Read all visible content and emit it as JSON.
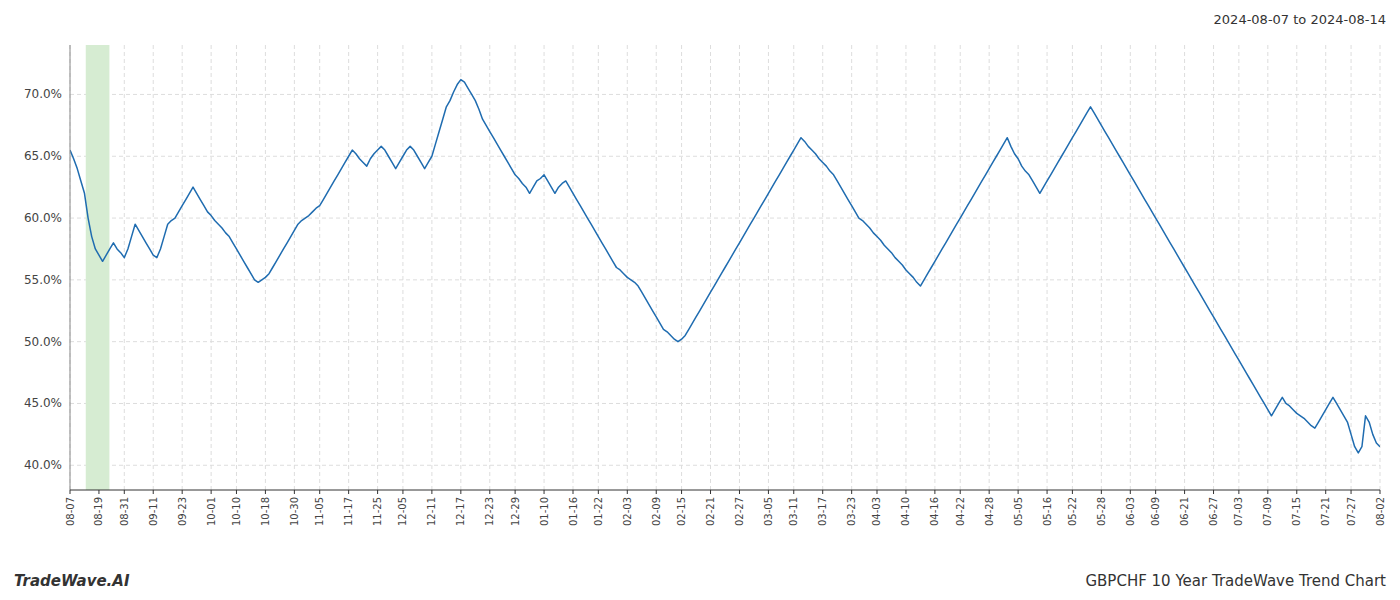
{
  "chart_data": {
    "type": "line",
    "title": "2024-08-07 to 2024-08-14",
    "annotations": [
      "TradeWave.AI",
      "GBPCHF 10 Year TradeWave Trend Chart"
    ],
    "color": "#1f6cb0",
    "grid": true,
    "ylim": [
      38.0,
      74.0
    ],
    "yticks": [
      {
        "value": 40.0,
        "label": "40.0%"
      },
      {
        "value": 45.0,
        "label": "45.0%"
      },
      {
        "value": 50.0,
        "label": "50.0%"
      },
      {
        "value": 55.0,
        "label": "55.0%"
      },
      {
        "value": 60.0,
        "label": "60.0%"
      },
      {
        "value": 65.0,
        "label": "65.0%"
      },
      {
        "value": 70.0,
        "label": "70.0%"
      }
    ],
    "shade": {
      "start": 4.356,
      "end": 10.89,
      "color": "#d6ecd2"
    },
    "categories": [
      "08-07",
      null,
      null,
      null,
      null,
      null,
      null,
      null,
      "08-19",
      null,
      null,
      null,
      null,
      null,
      null,
      "08-31",
      null,
      null,
      null,
      null,
      null,
      null,
      null,
      "09-11",
      null,
      null,
      null,
      null,
      null,
      null,
      null,
      "09-23",
      null,
      null,
      null,
      null,
      null,
      null,
      null,
      "10-01",
      null,
      null,
      null,
      null,
      null,
      null,
      "10-10",
      null,
      null,
      null,
      null,
      null,
      null,
      null,
      "10-18",
      null,
      null,
      null,
      null,
      null,
      null,
      null,
      "10-30",
      null,
      null,
      null,
      null,
      null,
      null,
      "11-05",
      null,
      null,
      null,
      null,
      null,
      null,
      null,
      "11-17",
      null,
      null,
      null,
      null,
      null,
      null,
      null,
      "11-25",
      null,
      null,
      null,
      null,
      null,
      null,
      "12-05",
      null,
      null,
      null,
      null,
      null,
      null,
      null,
      "12-11",
      null,
      null,
      null,
      null,
      null,
      null,
      null,
      "12-17",
      null,
      null,
      null,
      null,
      null,
      null,
      null,
      "12-23",
      null,
      null,
      null,
      null,
      null,
      null,
      "12-29",
      null,
      null,
      null,
      null,
      null,
      null,
      null,
      "01-10",
      null,
      null,
      null,
      null,
      null,
      null,
      null,
      "01-16",
      null,
      null,
      null,
      null,
      null,
      null,
      "01-22",
      null,
      null,
      null,
      null,
      null,
      null,
      null,
      "02-03",
      null,
      null,
      null,
      null,
      null,
      null,
      null,
      "02-09",
      null,
      null,
      null,
      null,
      null,
      null,
      "02-15",
      null,
      null,
      null,
      null,
      null,
      null,
      null,
      "02-21",
      null,
      null,
      null,
      null,
      null,
      null,
      null,
      "02-27",
      null,
      null,
      null,
      null,
      null,
      null,
      null,
      "03-05",
      null,
      null,
      null,
      null,
      null,
      null,
      "03-11",
      null,
      null,
      null,
      null,
      null,
      null,
      null,
      "03-17",
      null,
      null,
      null,
      null,
      null,
      null,
      null,
      "03-23",
      null,
      null,
      null,
      null,
      null,
      null,
      "04-03",
      null,
      null,
      null,
      null,
      null,
      null,
      null,
      "04-10",
      null,
      null,
      null,
      null,
      null,
      null,
      null,
      "04-16",
      null,
      null,
      null,
      null,
      null,
      null,
      "04-22",
      null,
      null,
      null,
      null,
      null,
      null,
      null,
      "04-28",
      null,
      null,
      null,
      null,
      null,
      null,
      null,
      "05-05",
      null,
      null,
      null,
      null,
      null,
      null,
      null,
      "05-16",
      null,
      null,
      null,
      null,
      null,
      null,
      "05-22",
      null,
      null,
      null,
      null,
      null,
      null,
      null,
      "05-28",
      null,
      null,
      null,
      null,
      null,
      null,
      null,
      "06-03",
      null,
      null,
      null,
      null,
      null,
      null,
      "06-09",
      null,
      null,
      null,
      null,
      null,
      null,
      null,
      "06-21",
      null,
      null,
      null,
      null,
      null,
      null,
      null,
      "06-27",
      null,
      null,
      null,
      null,
      null,
      null,
      "07-03",
      null,
      null,
      null,
      null,
      null,
      null,
      null,
      "07-09",
      null,
      null,
      null,
      null,
      null,
      null,
      null,
      "07-15",
      null,
      null,
      null,
      null,
      null,
      null,
      null,
      "07-21",
      null,
      null,
      null,
      null,
      null,
      null,
      "07-27",
      null,
      null,
      null,
      null,
      null,
      null,
      null,
      "08-02"
    ],
    "values": [
      65.5,
      64.8,
      64.0,
      63.0,
      62.0,
      60.0,
      58.5,
      57.5,
      57.0,
      56.5,
      57.0,
      57.5,
      58.0,
      57.5,
      57.2,
      56.8,
      57.5,
      58.5,
      59.5,
      59.0,
      58.5,
      58.0,
      57.5,
      57.0,
      56.8,
      57.5,
      58.5,
      59.5,
      59.8,
      60.0,
      60.5,
      61.0,
      61.5,
      62.0,
      62.5,
      62.0,
      61.5,
      61.0,
      60.5,
      60.2,
      59.8,
      59.5,
      59.2,
      58.8,
      58.5,
      58.0,
      57.5,
      57.0,
      56.5,
      56.0,
      55.5,
      55.0,
      54.8,
      55.0,
      55.2,
      55.5,
      56.0,
      56.5,
      57.0,
      57.5,
      58.0,
      58.5,
      59.0,
      59.5,
      59.8,
      60.0,
      60.2,
      60.5,
      60.8,
      61.0,
      61.5,
      62.0,
      62.5,
      63.0,
      63.5,
      64.0,
      64.5,
      65.0,
      65.5,
      65.2,
      64.8,
      64.5,
      64.2,
      64.8,
      65.2,
      65.5,
      65.8,
      65.5,
      65.0,
      64.5,
      64.0,
      64.5,
      65.0,
      65.5,
      65.8,
      65.5,
      65.0,
      64.5,
      64.0,
      64.5,
      65.0,
      66.0,
      67.0,
      68.0,
      69.0,
      69.5,
      70.2,
      70.8,
      71.2,
      71.0,
      70.5,
      70.0,
      69.5,
      68.8,
      68.0,
      67.5,
      67.0,
      66.5,
      66.0,
      65.5,
      65.0,
      64.5,
      64.0,
      63.5,
      63.2,
      62.8,
      62.5,
      62.0,
      62.5,
      63.0,
      63.2,
      63.5,
      63.0,
      62.5,
      62.0,
      62.5,
      62.8,
      63.0,
      62.5,
      62.0,
      61.5,
      61.0,
      60.5,
      60.0,
      59.5,
      59.0,
      58.5,
      58.0,
      57.5,
      57.0,
      56.5,
      56.0,
      55.8,
      55.5,
      55.2,
      55.0,
      54.8,
      54.5,
      54.0,
      53.5,
      53.0,
      52.5,
      52.0,
      51.5,
      51.0,
      50.8,
      50.5,
      50.2,
      50.0,
      50.2,
      50.5,
      51.0,
      51.5,
      52.0,
      52.5,
      53.0,
      53.5,
      54.0,
      54.5,
      55.0,
      55.5,
      56.0,
      56.5,
      57.0,
      57.5,
      58.0,
      58.5,
      59.0,
      59.5,
      60.0,
      60.5,
      61.0,
      61.5,
      62.0,
      62.5,
      63.0,
      63.5,
      64.0,
      64.5,
      65.0,
      65.5,
      66.0,
      66.5,
      66.2,
      65.8,
      65.5,
      65.2,
      64.8,
      64.5,
      64.2,
      63.8,
      63.5,
      63.0,
      62.5,
      62.0,
      61.5,
      61.0,
      60.5,
      60.0,
      59.8,
      59.5,
      59.2,
      58.8,
      58.5,
      58.2,
      57.8,
      57.5,
      57.2,
      56.8,
      56.5,
      56.2,
      55.8,
      55.5,
      55.2,
      54.8,
      54.5,
      55.0,
      55.5,
      56.0,
      56.5,
      57.0,
      57.5,
      58.0,
      58.5,
      59.0,
      59.5,
      60.0,
      60.5,
      61.0,
      61.5,
      62.0,
      62.5,
      63.0,
      63.5,
      64.0,
      64.5,
      65.0,
      65.5,
      66.0,
      66.5,
      65.8,
      65.2,
      64.8,
      64.2,
      63.8,
      63.5,
      63.0,
      62.5,
      62.0,
      62.5,
      63.0,
      63.5,
      64.0,
      64.5,
      65.0,
      65.5,
      66.0,
      66.5,
      67.0,
      67.5,
      68.0,
      68.5,
      69.0,
      68.5,
      68.0,
      67.5,
      67.0,
      66.5,
      66.0,
      65.5,
      65.0,
      64.5,
      64.0,
      63.5,
      63.0,
      62.5,
      62.0,
      61.5,
      61.0,
      60.5,
      60.0,
      59.5,
      59.0,
      58.5,
      58.0,
      57.5,
      57.0,
      56.5,
      56.0,
      55.5,
      55.0,
      54.5,
      54.0,
      53.5,
      53.0,
      52.5,
      52.0,
      51.5,
      51.0,
      50.5,
      50.0,
      49.5,
      49.0,
      48.5,
      48.0,
      47.5,
      47.0,
      46.5,
      46.0,
      45.5,
      45.0,
      44.5,
      44.0,
      44.5,
      45.0,
      45.5,
      45.0,
      44.8,
      44.5,
      44.2,
      44.0,
      43.8,
      43.5,
      43.2,
      43.0,
      43.5,
      44.0,
      44.5,
      45.0,
      45.5,
      45.0,
      44.5,
      44.0,
      43.5,
      42.5,
      41.5,
      41.0,
      41.5,
      44.0,
      43.5,
      42.5,
      41.8,
      41.5
    ]
  }
}
